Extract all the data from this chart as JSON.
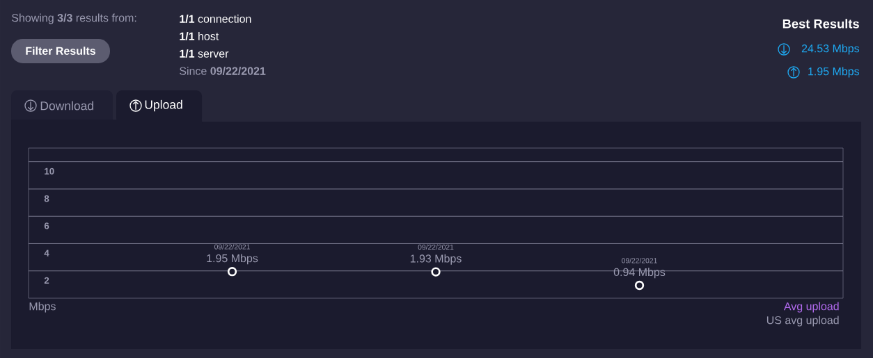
{
  "chart_data": {
    "type": "scatter",
    "categories": [
      "09/22/2021",
      "09/22/2021",
      "09/22/2021"
    ],
    "values": [
      1.95,
      1.93,
      0.94
    ],
    "value_labels": [
      "1.95 Mbps",
      "1.93 Mbps",
      "0.94 Mbps"
    ],
    "color": "#ffffff",
    "marker": "circle",
    "ylim": [
      0,
      11
    ],
    "yticks": [
      2,
      4,
      6,
      8,
      10
    ],
    "grid": "y",
    "annotations": [
      "Showing **3/3** results from:",
      "**1/1** connection",
      "**1/1** host",
      "**1/1** server",
      "Since **09/22/2021**",
      "Filter Results",
      "Best Results",
      "24.53 Mbps",
      "1.95 Mbps",
      "Download",
      "Upload",
      "Avg upload",
      "US avg upload",
      "Mbps"
    ]
  }
}
